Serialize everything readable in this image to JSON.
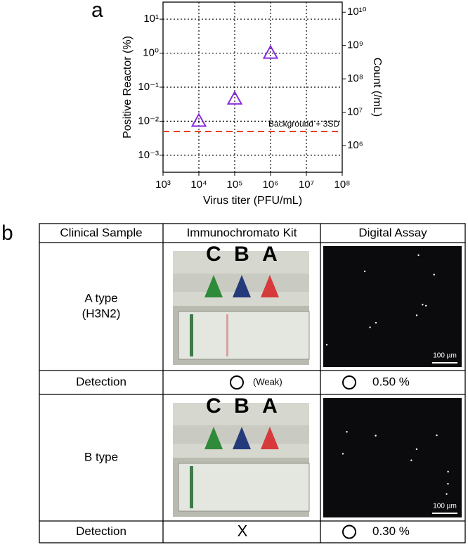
{
  "panel_labels": [
    "a",
    "b"
  ],
  "chart_data": {
    "type": "scatter",
    "x_label": "Virus titer (PFU/mL)",
    "y_label": "Positive Reactor (%)",
    "y2_label": "Count (/mL)",
    "log_x": true,
    "log_y": true,
    "grid": true,
    "x": [
      10000,
      100000,
      1000000
    ],
    "series": [
      {
        "color": "#8a2be2",
        "marker": "triangle",
        "values": [
          0.01,
          0.045,
          1
        ]
      }
    ],
    "xlim": [
      1000,
      100000000
    ],
    "xticks": [
      {
        "value": 1000,
        "label": "10³"
      },
      {
        "value": 10000,
        "label": "10⁴"
      },
      {
        "value": 100000,
        "label": "10⁵"
      },
      {
        "value": 1000000,
        "label": "10⁶"
      },
      {
        "value": 10000000,
        "label": "10⁷"
      },
      {
        "value": 100000000,
        "label": "10⁸"
      }
    ],
    "ylim": [
      0.000316,
      31.6
    ],
    "yticks": [
      {
        "value": 0.001,
        "label": "10⁻³"
      },
      {
        "value": 0.01,
        "label": "10⁻²"
      },
      {
        "value": 0.1,
        "label": "10⁻¹"
      },
      {
        "value": 1,
        "label": "10⁰"
      },
      {
        "value": 10,
        "label": "10¹"
      }
    ],
    "y2lim": [
      158000,
      20000000000
    ],
    "y2ticks": [
      {
        "value": 1000000,
        "label": "10⁶"
      },
      {
        "value": 10000000,
        "label": "10⁷"
      },
      {
        "value": 100000000,
        "label": "10⁸"
      },
      {
        "value": 1000000000,
        "label": "10⁹"
      },
      {
        "value": 10000000000,
        "label": "10¹⁰"
      }
    ],
    "reference_line": {
      "value": 0.005,
      "label": "Background + 3SD",
      "color": "#e8401c"
    }
  },
  "table": {
    "header": [
      "Clinical Sample",
      "Immunochromato Kit",
      "Digital Assay"
    ],
    "samples": [
      {
        "name": [
          "A type",
          "(H3N2)"
        ],
        "kit_labels": [
          "C",
          "B",
          "A"
        ],
        "scale_bar": "100 µm",
        "detection": "Detection",
        "kit_result": "(Weak)",
        "digital_result": "0.50 %"
      },
      {
        "name": [
          "B type"
        ],
        "kit_labels": [
          "C",
          "B",
          "A"
        ],
        "scale_bar": "100 µm",
        "detection": "Detection",
        "kit_result": "X",
        "digital_result": "0.30 %"
      }
    ]
  }
}
